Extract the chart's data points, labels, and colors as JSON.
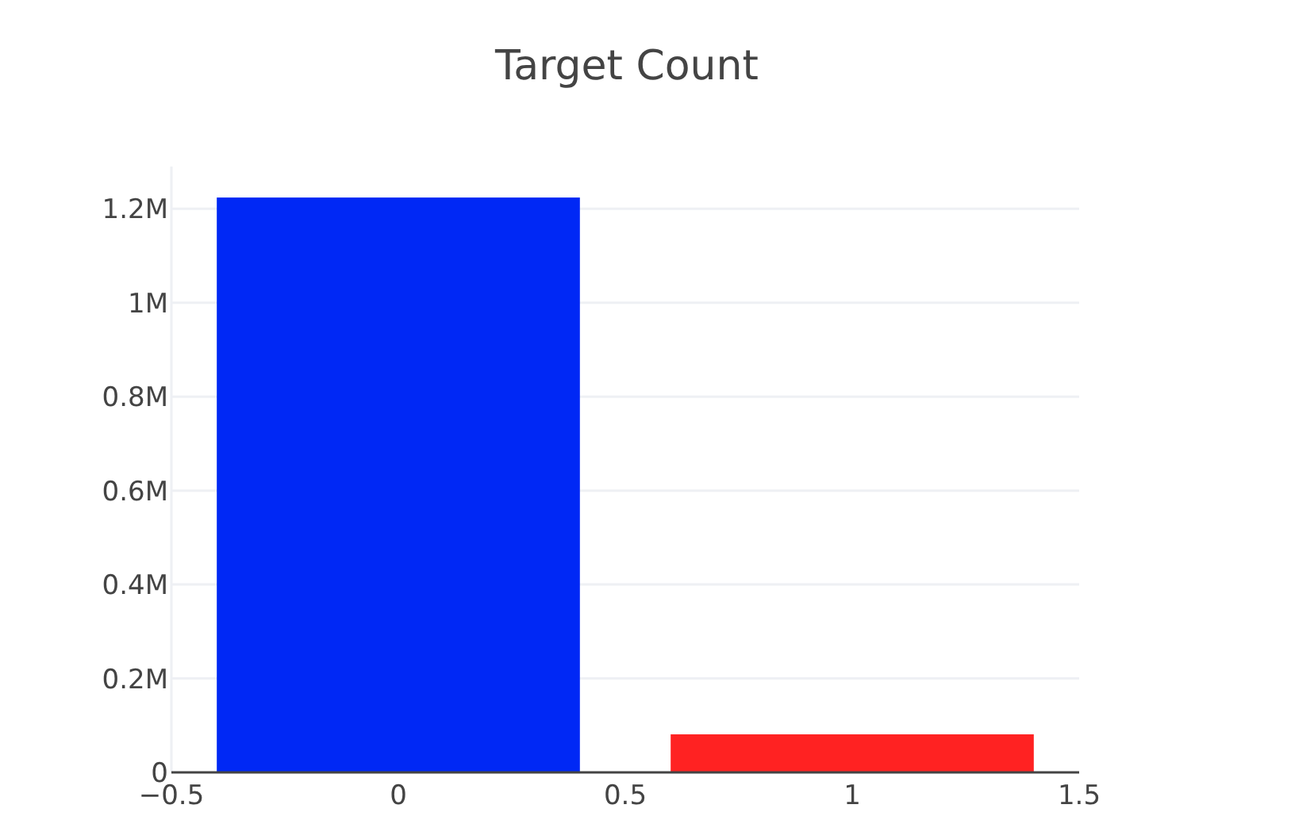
{
  "chart_data": {
    "type": "bar",
    "title": "Target Count",
    "x": [
      0,
      1
    ],
    "series": [
      {
        "values": [
          1224000,
          81000
        ],
        "colors": [
          "#0028f5",
          "#ff2222"
        ]
      }
    ],
    "xlim": [
      -0.5,
      1.5
    ],
    "xticks": [
      {
        "value": -0.5,
        "label": "−0.5"
      },
      0,
      0.5,
      1,
      1.5
    ],
    "ylim": [
      0,
      1290000
    ],
    "yticks": [
      0,
      {
        "value": 200000,
        "label": "0.2M"
      },
      {
        "value": 400000,
        "label": "0.4M"
      },
      {
        "value": 600000,
        "label": "0.6M"
      },
      {
        "value": 800000,
        "label": "0.8M"
      },
      {
        "value": 1000000,
        "label": "1M"
      },
      {
        "value": 1200000,
        "label": "1.2M"
      }
    ],
    "grid": "y"
  }
}
